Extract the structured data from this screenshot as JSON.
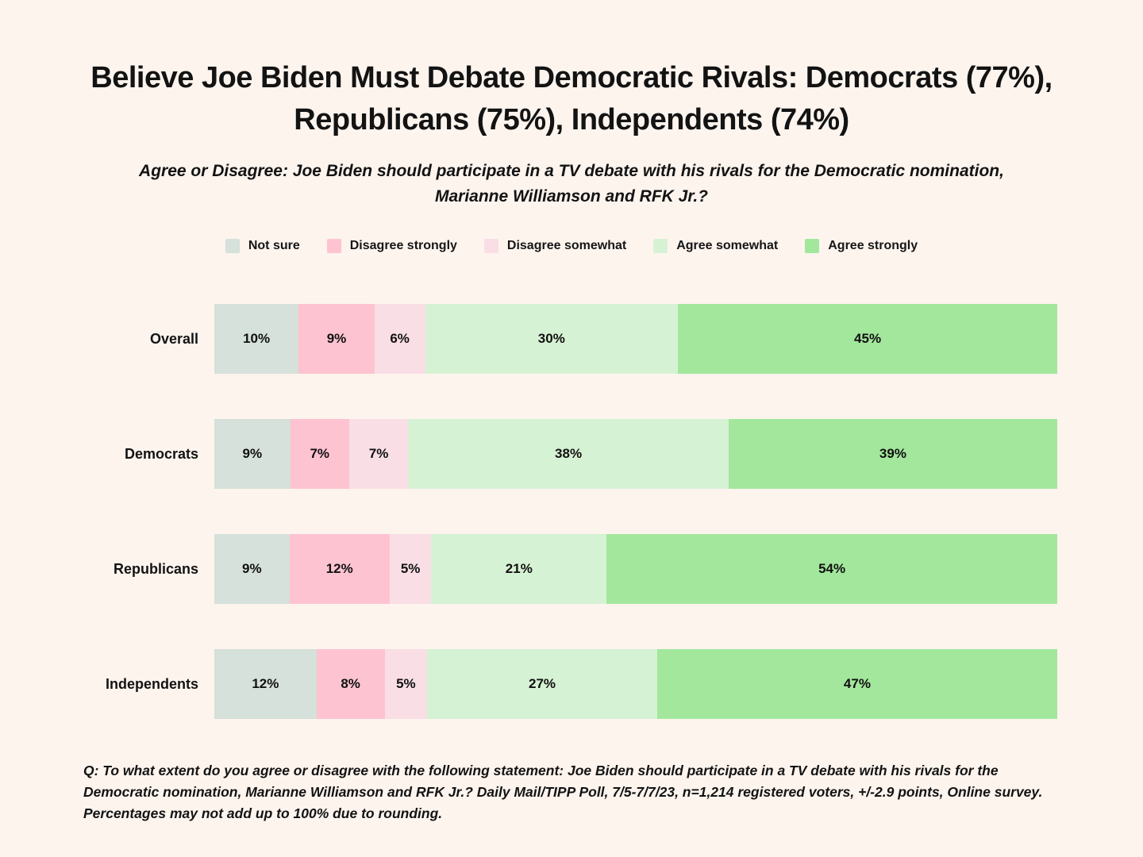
{
  "page": {
    "background_color": "#fdf4ee",
    "text_color": "#131313"
  },
  "title": "Believe Joe Biden Must Debate Democratic Rivals: Democrats (77%), Republicans (75%), Independents (74%)",
  "subtitle": "Agree or Disagree: Joe Biden should participate in a TV debate with his rivals for the Democratic nomination, Marianne Williamson and RFK Jr.?",
  "footnote": "Q: To what extent do you agree or disagree with the following statement: Joe Biden should participate in a TV debate with his rivals for the Democratic nomination, Marianne Williamson and RFK Jr.? Daily Mail/TIPP Poll, 7/5-7/7/23, n=1,214 registered voters, +/-2.9 points, Online survey.  Percentages may not add up to 100% due to rounding.",
  "chart_data": {
    "type": "bar",
    "orientation": "horizontal",
    "stacked": true,
    "stacked_total": 100,
    "grid": false,
    "legend_position": "top",
    "value_suffix": "%",
    "categories": [
      "Overall",
      "Democrats",
      "Republicans",
      "Independents"
    ],
    "legend": [
      {
        "label": "Not sure",
        "color": "#d5e1da"
      },
      {
        "label": "Disagree strongly",
        "color": "#fec3d1"
      },
      {
        "label": "Disagree somewhat",
        "color": "#f9dee6"
      },
      {
        "label": "Agree somewhat",
        "color": "#d6f2d4"
      },
      {
        "label": "Agree strongly",
        "color": "#a3e79d"
      }
    ],
    "series": [
      {
        "name": "Not sure",
        "values": [
          10,
          9,
          9,
          12
        ]
      },
      {
        "name": "Disagree strongly",
        "values": [
          9,
          7,
          12,
          8
        ]
      },
      {
        "name": "Disagree somewhat",
        "values": [
          6,
          7,
          5,
          5
        ]
      },
      {
        "name": "Agree somewhat",
        "values": [
          30,
          38,
          21,
          27
        ]
      },
      {
        "name": "Agree strongly",
        "values": [
          45,
          39,
          54,
          47
        ]
      }
    ]
  }
}
